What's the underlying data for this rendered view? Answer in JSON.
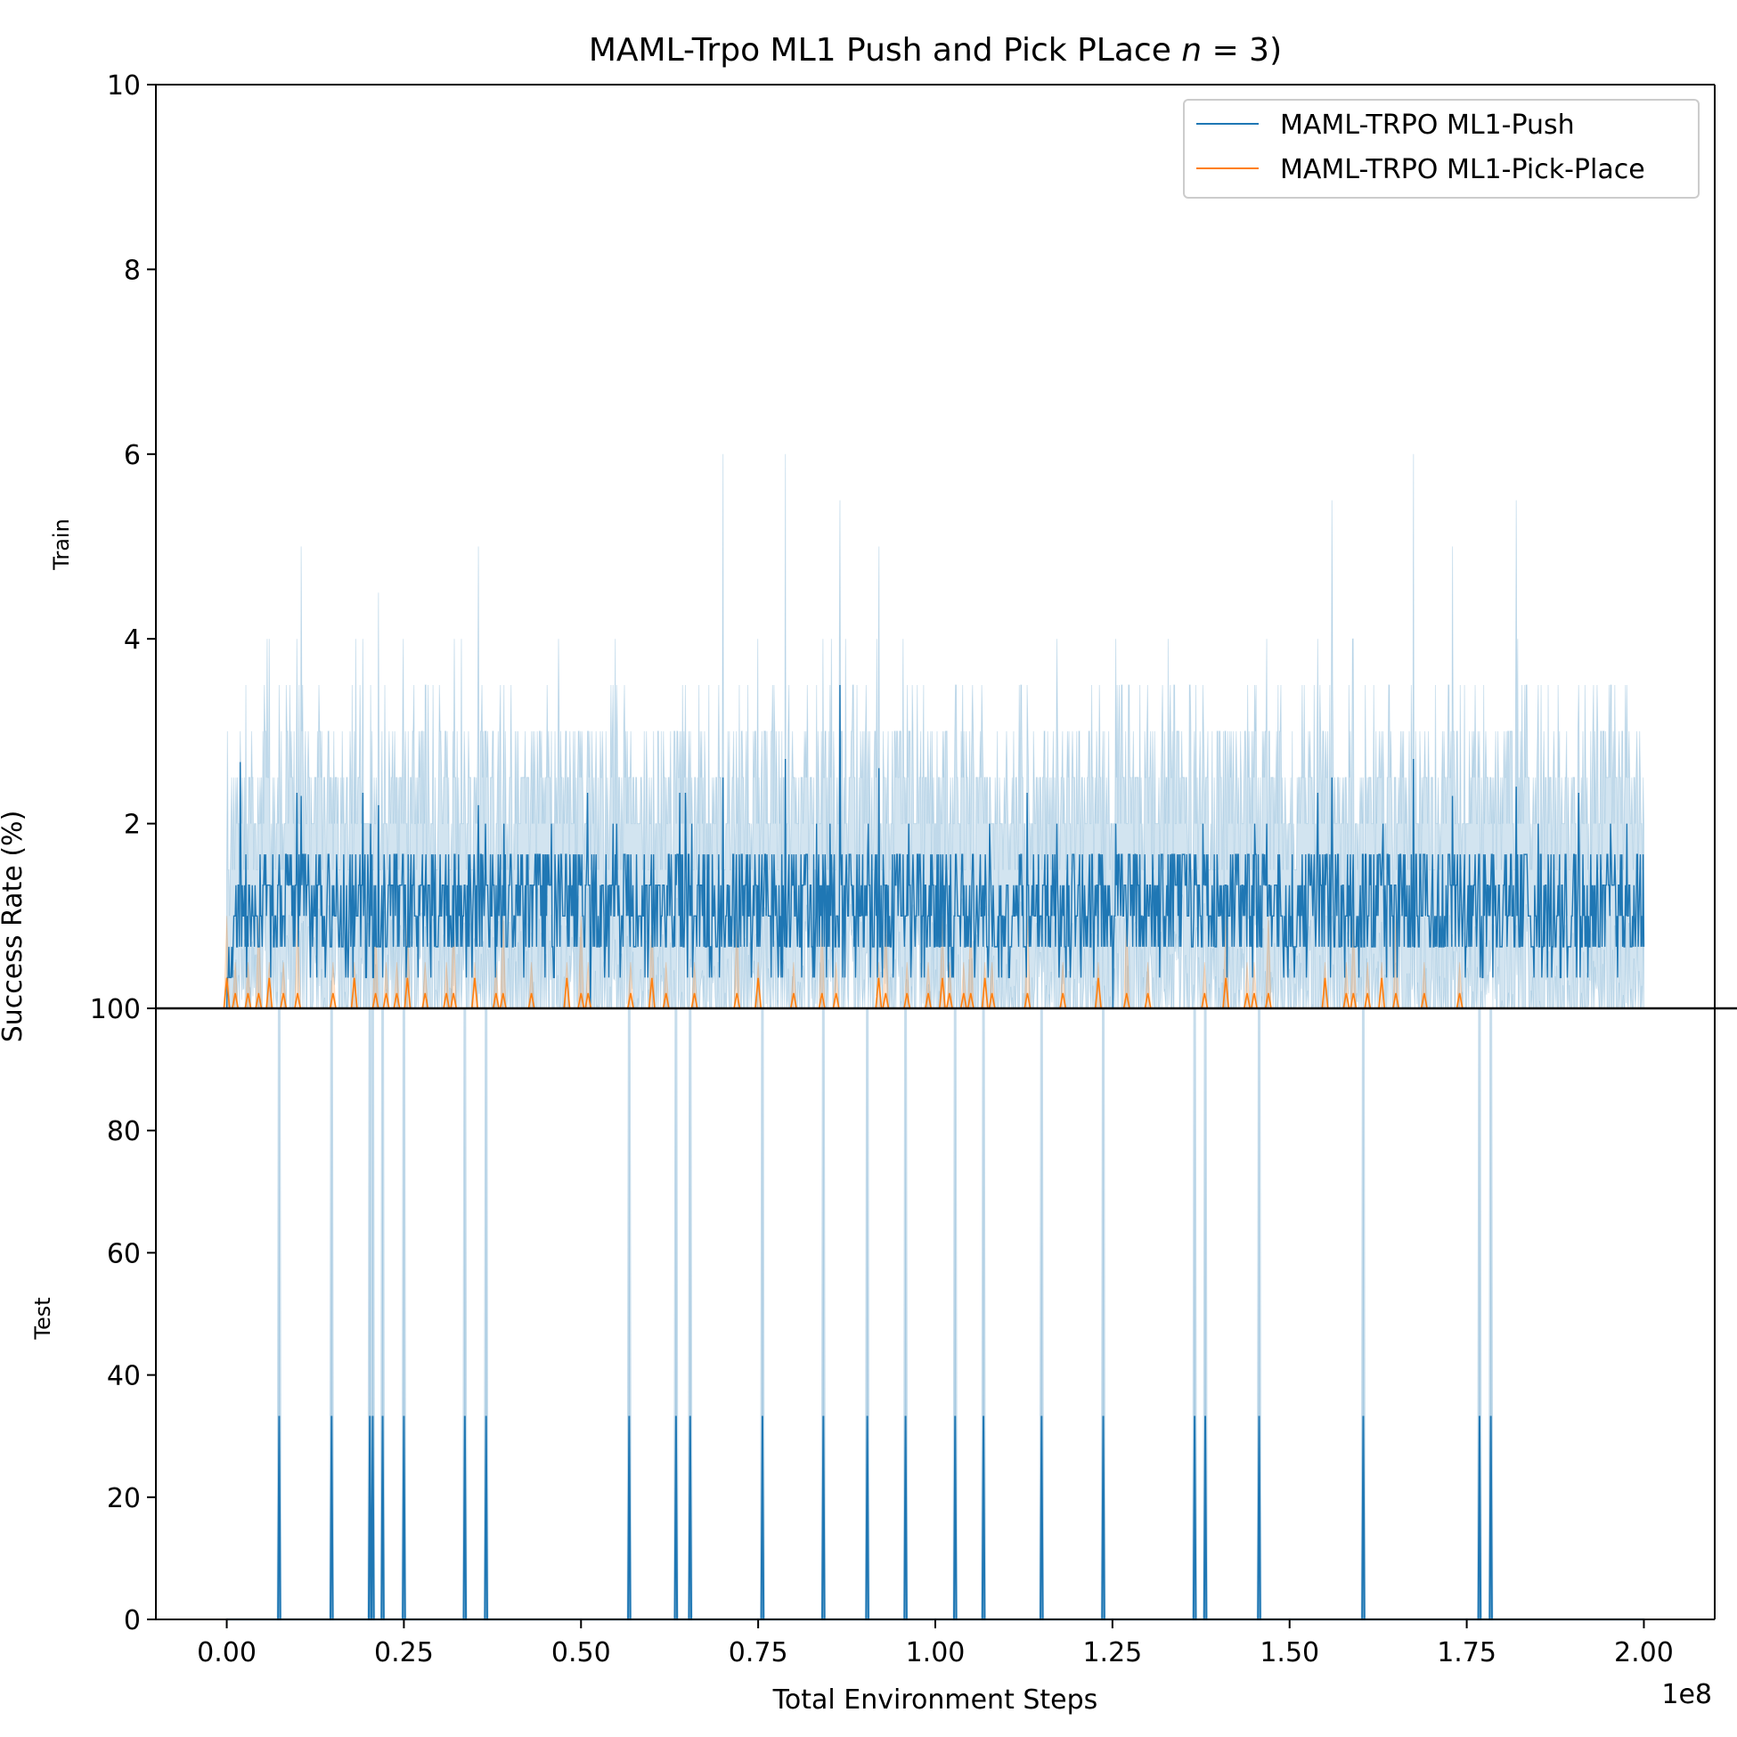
{
  "chart_data": {
    "type": "line",
    "title_main": "MAML-Trpo ML1 Push and Pick PLace ",
    "title_n": "n",
    "title_tail": " = 3)",
    "xlabel": "Total Environment Steps",
    "ylabel": "Success Rate (%)",
    "x_offset_label": "1e8",
    "xlim": [
      -0.1,
      2.1
    ],
    "x_ticks": [
      0.0,
      0.25,
      0.5,
      0.75,
      1.0,
      1.25,
      1.5,
      1.75,
      2.0
    ],
    "x_tick_labels": [
      "0.00",
      "0.25",
      "0.50",
      "0.75",
      "1.00",
      "1.25",
      "1.50",
      "1.75",
      "2.00"
    ],
    "legend_position": "top-right",
    "panels": [
      {
        "name": "Train",
        "ylim": [
          0,
          10
        ],
        "y_ticks": [
          2,
          4,
          6,
          8,
          10
        ],
        "y_tick_labels": [
          "2",
          "4",
          "6",
          "8",
          "10"
        ]
      },
      {
        "name": "Test",
        "ylim": [
          0,
          100
        ],
        "y_ticks": [
          0,
          20,
          40,
          60,
          80,
          100
        ],
        "y_tick_labels": [
          "0",
          "20",
          "40",
          "60",
          "80",
          "100"
        ]
      }
    ],
    "series": [
      {
        "name": "MAML-TRPO ML1-Push",
        "color": "#1f77b4",
        "band_color": "#1f77b4",
        "train": {
          "x_range": [
            0.0,
            2.0
          ],
          "n_points": 2000,
          "mean_range": [
            0.0,
            3.5
          ],
          "typical_mean": 1.1,
          "upper_max": 6.0,
          "peaks": [
            {
              "x": 0.105,
              "mean": 2.3,
              "upper": 5.0
            },
            {
              "x": 0.214,
              "mean": 2.2,
              "upper": 4.5
            },
            {
              "x": 0.355,
              "mean": 2.2,
              "upper": 5.0
            },
            {
              "x": 0.7,
              "mean": 2.5,
              "upper": 6.0
            },
            {
              "x": 0.788,
              "mean": 2.7,
              "upper": 6.0
            },
            {
              "x": 0.865,
              "mean": 3.5,
              "upper": 5.5
            },
            {
              "x": 0.92,
              "mean": 2.6,
              "upper": 5.0
            },
            {
              "x": 1.56,
              "mean": 2.5,
              "upper": 5.5
            },
            {
              "x": 1.675,
              "mean": 2.7,
              "upper": 6.0
            },
            {
              "x": 1.73,
              "mean": 2.3,
              "upper": 5.0
            },
            {
              "x": 1.82,
              "mean": 2.4,
              "upper": 5.5
            }
          ]
        },
        "test": {
          "baseline": 0,
          "spike_mean": 33.3,
          "spike_upper": 100,
          "spike_x": [
            0.074,
            0.148,
            0.202,
            0.206,
            0.22,
            0.25,
            0.336,
            0.366,
            0.568,
            0.634,
            0.654,
            0.756,
            0.842,
            0.904,
            0.958,
            1.028,
            1.068,
            1.15,
            1.237,
            1.366,
            1.381,
            1.457,
            1.604,
            1.768,
            1.784
          ]
        }
      },
      {
        "name": "MAML-TRPO ML1-Pick-Place",
        "color": "#ff7f0e",
        "band_color": "#ff7f0e",
        "train": {
          "x_range": [
            0.0,
            1.74
          ],
          "mean_range": [
            0.0,
            0.5
          ],
          "upper_max": 1.0,
          "spike_x": [
            0.0,
            0.012,
            0.03,
            0.045,
            0.06,
            0.08,
            0.1,
            0.15,
            0.18,
            0.21,
            0.225,
            0.24,
            0.255,
            0.28,
            0.31,
            0.32,
            0.35,
            0.38,
            0.39,
            0.43,
            0.48,
            0.5,
            0.51,
            0.57,
            0.6,
            0.62,
            0.66,
            0.72,
            0.75,
            0.8,
            0.84,
            0.86,
            0.92,
            0.93,
            0.96,
            0.99,
            1.01,
            1.02,
            1.04,
            1.05,
            1.07,
            1.08,
            1.13,
            1.18,
            1.23,
            1.27,
            1.3,
            1.38,
            1.41,
            1.44,
            1.45,
            1.47,
            1.55,
            1.58,
            1.59,
            1.61,
            1.63,
            1.65,
            1.69,
            1.74
          ]
        },
        "test": {
          "baseline": 0
        }
      }
    ]
  }
}
